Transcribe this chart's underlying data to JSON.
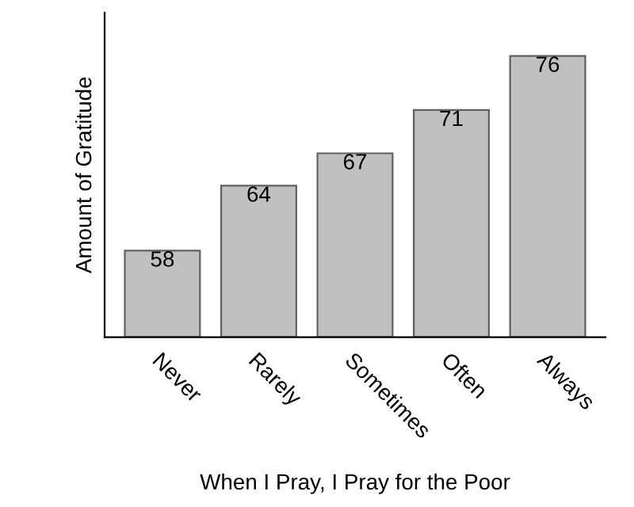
{
  "chart_data": {
    "type": "bar",
    "xlabel": "When I Pray, I Pray for the Poor",
    "ylabel": "Amount of Gratitude",
    "categories": [
      "Never",
      "Rarely",
      "Sometimes",
      "Often",
      "Always"
    ],
    "values": [
      58,
      64,
      67,
      71,
      76
    ],
    "color": "#c0c0c0",
    "ylim": [
      50,
      80
    ],
    "data_labels": true,
    "tick_labels": "x",
    "grid": false,
    "legend": false
  }
}
